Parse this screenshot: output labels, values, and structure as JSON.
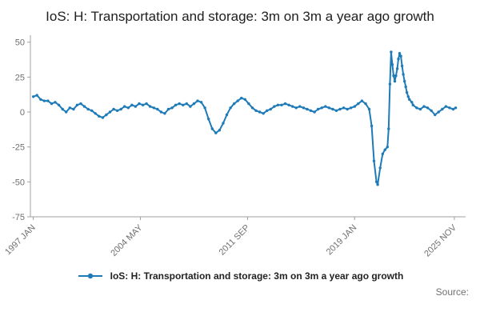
{
  "title": "IoS: H: Transportation and storage: 3m on 3m a year ago growth",
  "legend": {
    "label": "IoS: H: Transportation and storage: 3m on 3m a year ago growth"
  },
  "source_label": "Source:",
  "colors": {
    "line": "#1f7bb8",
    "axis": "#a0a0a0",
    "tick_text": "#707070",
    "title_text": "#202020"
  },
  "chart_data": {
    "type": "line",
    "title": "IoS: H: Transportation and storage: 3m on 3m a year ago growth",
    "xlabel": "",
    "ylabel": "",
    "grid": false,
    "legend_position": "bottom",
    "marker": "circle",
    "xlim": [
      1996.8,
      2026.6
    ],
    "ylim": [
      -75,
      55
    ],
    "y_ticks": [
      50,
      25,
      0,
      -25,
      -50,
      -75
    ],
    "x_ticks": [
      {
        "x": 1997.0,
        "label": "1997 JAN"
      },
      {
        "x": 2004.33,
        "label": "2004 MAY"
      },
      {
        "x": 2011.67,
        "label": "2011 SEP"
      },
      {
        "x": 2019.0,
        "label": "2019 JAN"
      },
      {
        "x": 2025.83,
        "label": "2025 NOV"
      }
    ],
    "x": [
      1997.0,
      1997.25,
      1997.5,
      1997.75,
      1998.0,
      1998.25,
      1998.5,
      1998.75,
      1999.0,
      1999.25,
      1999.5,
      1999.75,
      2000.0,
      2000.25,
      2000.5,
      2000.75,
      2001.0,
      2001.25,
      2001.5,
      2001.75,
      2002.0,
      2002.25,
      2002.5,
      2002.75,
      2003.0,
      2003.25,
      2003.5,
      2003.75,
      2004.0,
      2004.25,
      2004.5,
      2004.75,
      2005.0,
      2005.25,
      2005.5,
      2005.75,
      2006.0,
      2006.25,
      2006.5,
      2006.75,
      2007.0,
      2007.25,
      2007.5,
      2007.75,
      2008.0,
      2008.25,
      2008.5,
      2008.75,
      2009.0,
      2009.25,
      2009.5,
      2009.75,
      2010.0,
      2010.25,
      2010.5,
      2010.75,
      2011.0,
      2011.25,
      2011.5,
      2011.75,
      2012.0,
      2012.25,
      2012.5,
      2012.75,
      2013.0,
      2013.25,
      2013.5,
      2013.75,
      2014.0,
      2014.25,
      2014.5,
      2014.75,
      2015.0,
      2015.25,
      2015.5,
      2015.75,
      2016.0,
      2016.25,
      2016.5,
      2016.75,
      2017.0,
      2017.25,
      2017.5,
      2017.75,
      2018.0,
      2018.25,
      2018.5,
      2018.75,
      2019.0,
      2019.25,
      2019.5,
      2019.75,
      2020.0,
      2020.17,
      2020.33,
      2020.5,
      2020.58,
      2020.75,
      2020.92,
      2021.08,
      2021.25,
      2021.33,
      2021.42,
      2021.5,
      2021.58,
      2021.67,
      2021.75,
      2021.83,
      2021.92,
      2022.0,
      2022.08,
      2022.17,
      2022.25,
      2022.33,
      2022.42,
      2022.5,
      2022.58,
      2022.67,
      2022.75,
      2022.92,
      2023.0,
      2023.25,
      2023.5,
      2023.75,
      2024.0,
      2024.25,
      2024.5,
      2024.75,
      2025.0,
      2025.25,
      2025.5,
      2025.75,
      2025.92
    ],
    "y": [
      11,
      12,
      9,
      8,
      8,
      6,
      7,
      5,
      2,
      0,
      3,
      2,
      5,
      6,
      4,
      2,
      1,
      -1,
      -3,
      -4,
      -2,
      0,
      2,
      1,
      2,
      4,
      3,
      5,
      4,
      6,
      5,
      6,
      4,
      3,
      2,
      0,
      -1,
      2,
      3,
      5,
      6,
      5,
      6,
      4,
      6,
      8,
      7,
      3,
      -5,
      -12,
      -15,
      -13,
      -8,
      -2,
      3,
      6,
      8,
      10,
      9,
      6,
      3,
      1,
      0,
      -1,
      1,
      2,
      4,
      5,
      5,
      6,
      5,
      4,
      3,
      4,
      3,
      2,
      1,
      0,
      2,
      3,
      4,
      3,
      2,
      1,
      2,
      3,
      2,
      3,
      4,
      6,
      8,
      6,
      2,
      -10,
      -35,
      -50,
      -52,
      -40,
      -30,
      -27,
      -25,
      -12,
      20,
      43,
      34,
      26,
      22,
      26,
      31,
      38,
      42,
      40,
      33,
      27,
      22,
      18,
      14,
      11,
      9,
      7,
      5,
      3,
      2,
      4,
      3,
      1,
      -2,
      0,
      2,
      4,
      3,
      2,
      3
    ]
  }
}
